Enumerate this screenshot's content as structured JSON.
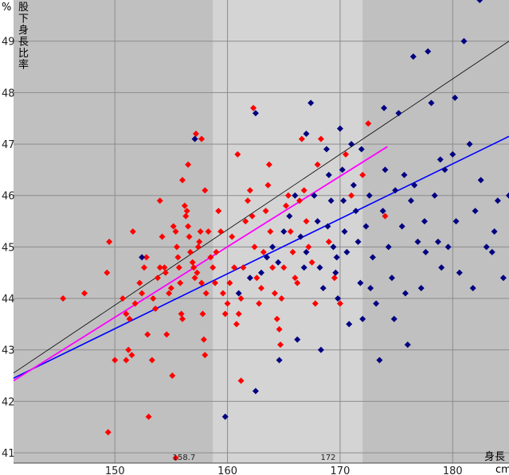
{
  "chart_data": {
    "type": "scatter",
    "xlim": [
      141,
      185
    ],
    "ylim": [
      40.8,
      49.8
    ],
    "xticks": [
      150,
      160,
      170,
      180
    ],
    "yticks": [
      41,
      42,
      43,
      44,
      45,
      46,
      47,
      48,
      49
    ],
    "xlabel": "身長",
    "x_unit": "cm",
    "y_unit": "%",
    "ylabel_chars": [
      "股",
      "下",
      "身",
      "長",
      "比",
      "率"
    ],
    "band_labels": [
      "158.7",
      "172"
    ],
    "bands": [
      {
        "x0": 158.7,
        "x1": 172,
        "color": "#d4d4d4"
      }
    ],
    "background_color": "#c0c0c0",
    "grid": true,
    "series": [
      {
        "color": "#ff0000",
        "points": [
          [
            145.4,
            44.0
          ],
          [
            147.3,
            44.1
          ],
          [
            149.3,
            44.5
          ],
          [
            149.5,
            45.1
          ],
          [
            149.4,
            41.4
          ],
          [
            150.0,
            42.8
          ],
          [
            151.0,
            42.8
          ],
          [
            151.2,
            43.0
          ],
          [
            151.5,
            42.9
          ],
          [
            150.7,
            44.0
          ],
          [
            151.0,
            43.7
          ],
          [
            151.3,
            43.6
          ],
          [
            151.8,
            43.9
          ],
          [
            151.6,
            45.3
          ],
          [
            152.2,
            44.3
          ],
          [
            152.4,
            44.1
          ],
          [
            152.6,
            44.6
          ],
          [
            152.8,
            44.8
          ],
          [
            152.9,
            43.3
          ],
          [
            153.0,
            41.7
          ],
          [
            153.3,
            42.8
          ],
          [
            153.4,
            44.0
          ],
          [
            153.6,
            43.8
          ],
          [
            153.8,
            44.4
          ],
          [
            154.0,
            44.6
          ],
          [
            154.2,
            45.2
          ],
          [
            154.0,
            45.9
          ],
          [
            154.4,
            44.6
          ],
          [
            154.5,
            44.5
          ],
          [
            154.6,
            43.3
          ],
          [
            154.8,
            44.1
          ],
          [
            155.0,
            44.2
          ],
          [
            155.1,
            42.5
          ],
          [
            155.2,
            45.4
          ],
          [
            155.4,
            45.3
          ],
          [
            155.5,
            45.0
          ],
          [
            155.6,
            44.8
          ],
          [
            155.7,
            44.6
          ],
          [
            155.8,
            44.3
          ],
          [
            155.9,
            43.7
          ],
          [
            156.0,
            43.6
          ],
          [
            156.0,
            46.3
          ],
          [
            156.2,
            45.8
          ],
          [
            156.3,
            45.6
          ],
          [
            156.4,
            45.7
          ],
          [
            156.5,
            45.4
          ],
          [
            156.6,
            45.2
          ],
          [
            156.7,
            44.9
          ],
          [
            156.9,
            44.7
          ],
          [
            157.0,
            44.6
          ],
          [
            157.1,
            44.4
          ],
          [
            157.3,
            44.5
          ],
          [
            157.4,
            45.0
          ],
          [
            157.5,
            45.1
          ],
          [
            157.6,
            45.3
          ],
          [
            157.7,
            44.3
          ],
          [
            157.8,
            43.7
          ],
          [
            157.9,
            43.2
          ],
          [
            158.0,
            42.9
          ],
          [
            158.1,
            44.1
          ],
          [
            158.3,
            45.3
          ],
          [
            158.0,
            46.1
          ],
          [
            157.7,
            47.1
          ],
          [
            157.2,
            47.2
          ],
          [
            156.5,
            46.6
          ],
          [
            158.5,
            44.8
          ],
          [
            158.7,
            44.6
          ],
          [
            158.9,
            44.3
          ],
          [
            159.0,
            44.9
          ],
          [
            159.2,
            45.7
          ],
          [
            159.4,
            45.3
          ],
          [
            159.6,
            44.1
          ],
          [
            159.8,
            43.7
          ],
          [
            160.0,
            43.9
          ],
          [
            160.2,
            44.3
          ],
          [
            160.4,
            45.2
          ],
          [
            160.6,
            44.6
          ],
          [
            160.8,
            43.5
          ],
          [
            161.0,
            43.7
          ],
          [
            161.2,
            44.0
          ],
          [
            161.4,
            44.6
          ],
          [
            161.6,
            45.5
          ],
          [
            161.8,
            45.9
          ],
          [
            162.0,
            46.1
          ],
          [
            162.2,
            45.6
          ],
          [
            162.4,
            45.0
          ],
          [
            162.6,
            44.4
          ],
          [
            162.8,
            43.9
          ],
          [
            163.0,
            44.2
          ],
          [
            163.2,
            44.9
          ],
          [
            163.4,
            45.7
          ],
          [
            163.6,
            46.2
          ],
          [
            163.8,
            45.3
          ],
          [
            164.0,
            44.6
          ],
          [
            164.2,
            44.1
          ],
          [
            164.4,
            43.6
          ],
          [
            164.6,
            43.4
          ],
          [
            164.8,
            44.0
          ],
          [
            165.0,
            44.6
          ],
          [
            165.2,
            45.8
          ],
          [
            165.4,
            46.0
          ],
          [
            165.6,
            45.3
          ],
          [
            165.8,
            44.9
          ],
          [
            166.0,
            44.4
          ],
          [
            166.2,
            44.3
          ],
          [
            166.4,
            45.9
          ],
          [
            166.6,
            47.1
          ],
          [
            166.8,
            46.1
          ],
          [
            167.0,
            45.5
          ],
          [
            167.2,
            45.0
          ],
          [
            167.5,
            44.7
          ],
          [
            167.8,
            43.9
          ],
          [
            168.0,
            46.6
          ],
          [
            168.3,
            47.1
          ],
          [
            169.0,
            45.1
          ],
          [
            169.5,
            44.4
          ],
          [
            170.0,
            43.9
          ],
          [
            170.5,
            46.8
          ],
          [
            171.0,
            46.0
          ],
          [
            172.0,
            46.4
          ],
          [
            172.5,
            47.4
          ],
          [
            174.0,
            45.6
          ],
          [
            162.3,
            47.7
          ],
          [
            161.2,
            42.4
          ],
          [
            155.4,
            40.9
          ],
          [
            163.7,
            46.6
          ],
          [
            160.9,
            46.8
          ],
          [
            164.7,
            43.1
          ]
        ]
      },
      {
        "color": "#000080",
        "points": [
          [
            152.4,
            44.8
          ],
          [
            157.1,
            47.1
          ],
          [
            159.8,
            41.7
          ],
          [
            162.5,
            42.2
          ],
          [
            162.5,
            47.6
          ],
          [
            164.6,
            42.8
          ],
          [
            166.2,
            43.2
          ],
          [
            168.3,
            43.0
          ],
          [
            161.0,
            44.1
          ],
          [
            162.0,
            44.4
          ],
          [
            163.0,
            44.5
          ],
          [
            164.0,
            45.0
          ],
          [
            164.5,
            44.7
          ],
          [
            165.0,
            45.3
          ],
          [
            165.5,
            45.6
          ],
          [
            166.0,
            46.0
          ],
          [
            166.5,
            45.2
          ],
          [
            167.0,
            44.9
          ],
          [
            167.0,
            47.2
          ],
          [
            167.4,
            47.8
          ],
          [
            167.7,
            46.0
          ],
          [
            168.0,
            45.5
          ],
          [
            168.2,
            44.6
          ],
          [
            168.5,
            44.2
          ],
          [
            168.8,
            46.9
          ],
          [
            169.0,
            46.4
          ],
          [
            169.2,
            45.9
          ],
          [
            169.4,
            45.0
          ],
          [
            169.6,
            44.5
          ],
          [
            169.8,
            44.0
          ],
          [
            170.0,
            47.3
          ],
          [
            170.2,
            46.5
          ],
          [
            170.4,
            45.3
          ],
          [
            170.6,
            44.9
          ],
          [
            170.8,
            43.5
          ],
          [
            171.0,
            47.0
          ],
          [
            171.2,
            46.2
          ],
          [
            171.4,
            45.7
          ],
          [
            171.6,
            45.1
          ],
          [
            171.8,
            44.3
          ],
          [
            172.0,
            43.6
          ],
          [
            172.3,
            45.4
          ],
          [
            172.6,
            46.0
          ],
          [
            172.9,
            44.8
          ],
          [
            173.2,
            43.9
          ],
          [
            173.5,
            42.8
          ],
          [
            173.8,
            45.7
          ],
          [
            174.0,
            46.5
          ],
          [
            174.3,
            45.0
          ],
          [
            174.6,
            44.4
          ],
          [
            174.9,
            46.1
          ],
          [
            175.2,
            47.6
          ],
          [
            175.5,
            45.4
          ],
          [
            175.8,
            44.1
          ],
          [
            176.0,
            43.1
          ],
          [
            176.3,
            45.9
          ],
          [
            176.6,
            46.2
          ],
          [
            176.9,
            45.1
          ],
          [
            177.2,
            44.2
          ],
          [
            177.5,
            45.5
          ],
          [
            177.8,
            48.8
          ],
          [
            178.1,
            47.8
          ],
          [
            178.4,
            46.0
          ],
          [
            178.7,
            45.1
          ],
          [
            179.0,
            44.6
          ],
          [
            179.3,
            46.5
          ],
          [
            179.6,
            45.0
          ],
          [
            180.0,
            46.8
          ],
          [
            180.3,
            45.5
          ],
          [
            180.6,
            44.5
          ],
          [
            181.0,
            49.0
          ],
          [
            181.5,
            47.0
          ],
          [
            182.0,
            45.7
          ],
          [
            182.5,
            46.3
          ],
          [
            183.0,
            45.0
          ],
          [
            183.5,
            44.9
          ],
          [
            184.0,
            45.9
          ],
          [
            184.5,
            44.4
          ],
          [
            185.0,
            46.0
          ],
          [
            176.5,
            48.7
          ],
          [
            180.2,
            47.9
          ],
          [
            182.4,
            49.8
          ],
          [
            173.9,
            47.7
          ],
          [
            177.6,
            44.9
          ],
          [
            168.9,
            45.4
          ],
          [
            172.7,
            44.2
          ],
          [
            175.7,
            46.4
          ],
          [
            170.3,
            45.9
          ],
          [
            171.9,
            46.9
          ],
          [
            174.8,
            43.6
          ],
          [
            178.9,
            46.7
          ],
          [
            181.8,
            44.2
          ],
          [
            183.7,
            45.3
          ],
          [
            169.7,
            44.8
          ],
          [
            166.8,
            44.6
          ],
          [
            163.5,
            44.8
          ]
        ]
      }
    ],
    "lines": [
      {
        "color": "#000000",
        "width": 0.8,
        "from": [
          141,
          42.55
        ],
        "to": [
          185,
          49.0
        ]
      },
      {
        "color": "#0000ff",
        "width": 1.6,
        "from": [
          141,
          42.45
        ],
        "to": [
          185,
          47.15
        ]
      },
      {
        "color": "#ff00ff",
        "width": 1.8,
        "from": [
          141,
          42.4
        ],
        "to": [
          174.2,
          46.95
        ]
      }
    ]
  }
}
